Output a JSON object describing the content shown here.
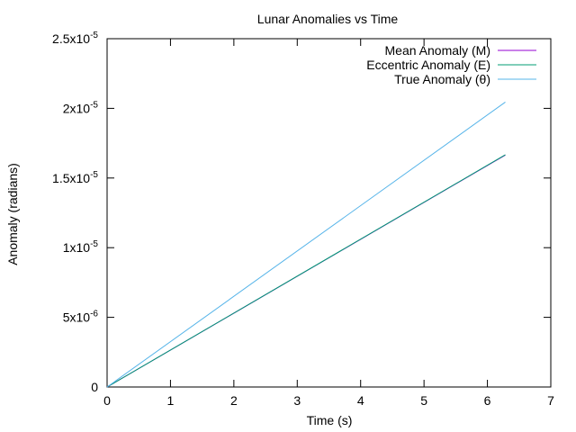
{
  "chart_data": {
    "type": "line",
    "title": "Lunar Anomalies vs Time",
    "xlabel": "Time (s)",
    "ylabel": "Anomaly (radians)",
    "xlim": [
      0,
      7
    ],
    "ylim": [
      0,
      2.5e-05
    ],
    "grid": false,
    "legend_position": "top-right",
    "x_ticks": [
      {
        "value": 0,
        "label": "0"
      },
      {
        "value": 1,
        "label": "1"
      },
      {
        "value": 2,
        "label": "2"
      },
      {
        "value": 3,
        "label": "3"
      },
      {
        "value": 4,
        "label": "4"
      },
      {
        "value": 5,
        "label": "5"
      },
      {
        "value": 6,
        "label": "6"
      },
      {
        "value": 7,
        "label": "7"
      }
    ],
    "y_ticks": [
      {
        "value": 0,
        "mantissa": "0",
        "exponent": ""
      },
      {
        "value": 5e-06,
        "mantissa": "5x10",
        "exponent": "-6"
      },
      {
        "value": 1e-05,
        "mantissa": "1x10",
        "exponent": "-5"
      },
      {
        "value": 1.5e-05,
        "mantissa": "1.5x10",
        "exponent": "-5"
      },
      {
        "value": 2e-05,
        "mantissa": "2x10",
        "exponent": "-5"
      },
      {
        "value": 2.5e-05,
        "mantissa": "2.5x10",
        "exponent": "-5"
      }
    ],
    "series": [
      {
        "name": "Mean Anomaly (M)",
        "color": "#9400d3",
        "x": [
          0,
          6.283
        ],
        "y": [
          0,
          1.665e-05
        ]
      },
      {
        "name": "Eccentric Anomaly (E)",
        "color": "#009e73",
        "x": [
          0,
          6.283
        ],
        "y": [
          0,
          1.667e-05
        ]
      },
      {
        "name": "True Anomaly (θ)",
        "color": "#56b4e9",
        "x": [
          0,
          6.283
        ],
        "y": [
          0,
          2.045e-05
        ]
      }
    ]
  }
}
